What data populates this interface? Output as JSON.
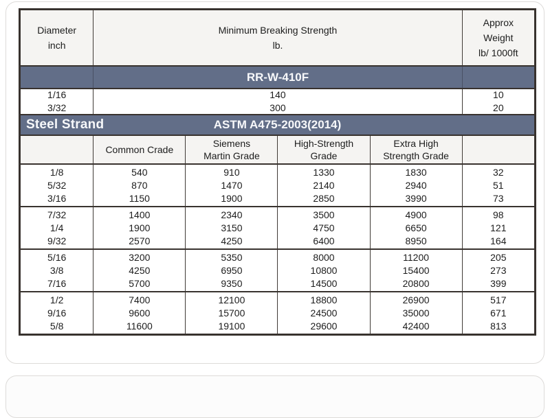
{
  "colors": {
    "band_slate": "#626e88",
    "border_dark": "#38322e",
    "header_bg": "#f5f4f2",
    "card_border": "#dddbd9"
  },
  "table": {
    "header": {
      "diameter": [
        "Diameter",
        "inch"
      ],
      "strength": [
        "Minimum Breaking Strength",
        "lb."
      ],
      "weight": [
        "Approx",
        "Weight",
        "lb/ 1000ft"
      ]
    },
    "spec_band": {
      "label": "RR-W-410F"
    },
    "spec_rows": {
      "diameters": [
        "1/16",
        "3/32"
      ],
      "strengths": [
        "140",
        "300"
      ],
      "weights": [
        "10",
        "20"
      ]
    },
    "strand_band": {
      "title": "Steel Strand",
      "standard": "ASTM A475-2003(2014)"
    },
    "grade_headers": {
      "common": [
        "Common Crade"
      ],
      "siemens": [
        "Siemens",
        "Martin Grade"
      ],
      "high": [
        "High-Strength",
        "Grade"
      ],
      "extra": [
        "Extra High",
        "Strength Grade"
      ]
    },
    "groups": [
      {
        "diameters": [
          "1/8",
          "5/32",
          "3/16"
        ],
        "common": [
          "540",
          "870",
          "1150"
        ],
        "siemens": [
          "910",
          "1470",
          "1900"
        ],
        "high": [
          "1330",
          "2140",
          "2850"
        ],
        "extra": [
          "1830",
          "2940",
          "3990"
        ],
        "weights": [
          "32",
          "51",
          "73"
        ]
      },
      {
        "diameters": [
          "7/32",
          "1/4",
          "9/32"
        ],
        "common": [
          "1400",
          "1900",
          "2570"
        ],
        "siemens": [
          "2340",
          "3150",
          "4250"
        ],
        "high": [
          "3500",
          "4750",
          "6400"
        ],
        "extra": [
          "4900",
          "6650",
          "8950"
        ],
        "weights": [
          "98",
          "121",
          "164"
        ]
      },
      {
        "diameters": [
          "5/16",
          "3/8",
          "7/16"
        ],
        "common": [
          "3200",
          "4250",
          "5700"
        ],
        "siemens": [
          "5350",
          "6950",
          "9350"
        ],
        "high": [
          "8000",
          "10800",
          "14500"
        ],
        "extra": [
          "11200",
          "15400",
          "20800"
        ],
        "weights": [
          "205",
          "273",
          "399"
        ]
      },
      {
        "diameters": [
          "1/2",
          "9/16",
          "5/8"
        ],
        "common": [
          "7400",
          "9600",
          "11600"
        ],
        "siemens": [
          "12100",
          "15700",
          "19100"
        ],
        "high": [
          "18800",
          "24500",
          "29600"
        ],
        "extra": [
          "26900",
          "35000",
          "42400"
        ],
        "weights": [
          "517",
          "671",
          "813"
        ]
      }
    ]
  }
}
